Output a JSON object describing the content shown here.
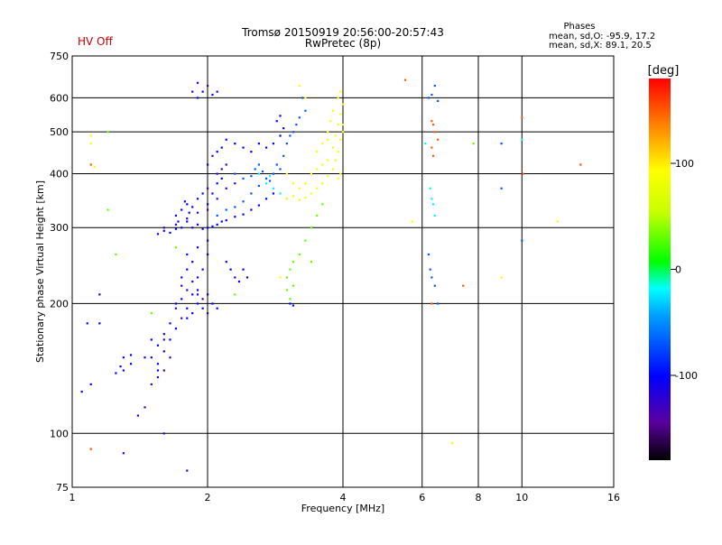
{
  "chart_data": {
    "type": "scatter",
    "title": "Tromsø 20150919 20:56:00-20:57:43",
    "subtitle": "RwPretec (8p)",
    "status_label": "HV Off",
    "status_color": "#cc0000",
    "info": {
      "heading": "Phases",
      "line1": "mean, sd,O: -95.9, 17.2",
      "line2": "mean, sd,X:  89.1, 20.5"
    },
    "xlabel": "Frequency [MHz]",
    "ylabel": "Stationary phase Virtual Height [km]",
    "x_scale": "log",
    "y_scale": "log",
    "xlim": [
      1,
      16
    ],
    "ylim": [
      75,
      750
    ],
    "x_ticks": [
      1,
      2,
      4,
      6,
      8,
      10,
      16
    ],
    "x_tick_labels": [
      "1",
      "2",
      "4",
      "6",
      "8",
      "10",
      "16"
    ],
    "y_ticks": [
      75,
      100,
      200,
      300,
      400,
      500,
      600,
      750
    ],
    "y_tick_labels": [
      "75",
      "100",
      "200",
      "300",
      "400",
      "500",
      "600",
      "750"
    ],
    "grid": true,
    "colorbar": {
      "label": "[deg]",
      "range": [
        -180,
        180
      ],
      "ticks": [
        100,
        0,
        -100
      ],
      "tick_labels": [
        "100",
        "0",
        "-100"
      ]
    },
    "series": [
      {
        "phase_deg": -100,
        "points": [
          [
            1.55,
            290
          ],
          [
            1.6,
            295
          ],
          [
            1.65,
            292
          ],
          [
            1.7,
            298
          ],
          [
            1.75,
            300
          ],
          [
            1.8,
            310
          ],
          [
            1.85,
            300
          ],
          [
            1.9,
            305
          ],
          [
            1.95,
            298
          ],
          [
            2.0,
            300
          ],
          [
            2.05,
            302
          ],
          [
            2.1,
            305
          ],
          [
            2.15,
            310
          ],
          [
            2.2,
            312
          ],
          [
            2.3,
            318
          ],
          [
            2.4,
            322
          ],
          [
            2.5,
            330
          ],
          [
            2.6,
            338
          ],
          [
            2.7,
            350
          ],
          [
            2.8,
            360
          ],
          [
            1.7,
            320
          ],
          [
            1.75,
            330
          ],
          [
            1.8,
            340
          ],
          [
            1.85,
            335
          ],
          [
            1.72,
            310
          ],
          [
            1.78,
            345
          ],
          [
            1.82,
            325
          ],
          [
            1.9,
            350
          ],
          [
            1.95,
            360
          ],
          [
            2.0,
            340
          ],
          [
            2.05,
            360
          ],
          [
            2.1,
            380
          ],
          [
            2.15,
            390
          ],
          [
            2.0,
            420
          ],
          [
            2.1,
            450
          ],
          [
            2.15,
            460
          ],
          [
            2.2,
            480
          ],
          [
            2.3,
            470
          ],
          [
            2.4,
            460
          ],
          [
            2.5,
            450
          ],
          [
            2.6,
            470
          ],
          [
            2.7,
            460
          ],
          [
            2.8,
            470
          ],
          [
            2.9,
            490
          ],
          [
            2.95,
            510
          ],
          [
            2.85,
            530
          ],
          [
            2.9,
            545
          ],
          [
            1.9,
            600
          ],
          [
            1.95,
            620
          ],
          [
            2.05,
            610
          ],
          [
            1.7,
            200
          ],
          [
            1.75,
            205
          ],
          [
            1.8,
            195
          ],
          [
            1.85,
            190
          ],
          [
            1.9,
            200
          ],
          [
            1.95,
            195
          ],
          [
            2.0,
            210
          ],
          [
            2.05,
            200
          ],
          [
            2.1,
            195
          ],
          [
            1.8,
            185
          ],
          [
            1.85,
            210
          ],
          [
            1.9,
            215
          ],
          [
            1.75,
            230
          ],
          [
            1.8,
            240
          ],
          [
            1.85,
            250
          ],
          [
            1.9,
            230
          ],
          [
            1.95,
            240
          ],
          [
            2.0,
            260
          ],
          [
            2.2,
            250
          ],
          [
            2.25,
            240
          ],
          [
            2.3,
            230
          ],
          [
            2.35,
            225
          ],
          [
            2.4,
            240
          ],
          [
            2.45,
            230
          ],
          [
            1.8,
            260
          ],
          [
            1.9,
            270
          ],
          [
            2.0,
            280
          ],
          [
            1.65,
            180
          ],
          [
            1.6,
            170
          ],
          [
            1.55,
            160
          ],
          [
            1.5,
            150
          ],
          [
            1.55,
            145
          ],
          [
            1.6,
            155
          ],
          [
            1.65,
            165
          ],
          [
            1.7,
            175
          ],
          [
            1.5,
            165
          ],
          [
            1.45,
            150
          ],
          [
            1.55,
            140
          ],
          [
            1.3,
            150
          ],
          [
            1.35,
            145
          ],
          [
            1.3,
            140
          ],
          [
            1.25,
            138
          ],
          [
            1.35,
            152
          ],
          [
            1.28,
            143
          ],
          [
            1.15,
            180
          ],
          [
            1.08,
            180
          ],
          [
            1.05,
            125
          ],
          [
            1.1,
            130
          ],
          [
            3.05,
            200
          ],
          [
            3.1,
            198
          ]
        ]
      },
      {
        "phase_deg": -125,
        "points": [
          [
            1.6,
            300
          ],
          [
            1.7,
            305
          ],
          [
            1.8,
            315
          ],
          [
            1.9,
            325
          ],
          [
            2.0,
            330
          ],
          [
            2.1,
            350
          ],
          [
            2.2,
            370
          ],
          [
            2.3,
            380
          ],
          [
            2.0,
            370
          ],
          [
            2.1,
            400
          ],
          [
            2.15,
            410
          ],
          [
            2.2,
            420
          ],
          [
            2.05,
            440
          ],
          [
            1.75,
            220
          ],
          [
            1.8,
            215
          ],
          [
            1.85,
            225
          ],
          [
            1.9,
            210
          ],
          [
            1.95,
            205
          ],
          [
            2.0,
            190
          ],
          [
            1.7,
            195
          ],
          [
            1.75,
            185
          ],
          [
            1.6,
            165
          ],
          [
            1.55,
            135
          ],
          [
            1.5,
            130
          ],
          [
            1.6,
            140
          ],
          [
            1.65,
            150
          ],
          [
            1.9,
            650
          ],
          [
            2.0,
            640
          ],
          [
            1.85,
            620
          ],
          [
            2.1,
            620
          ],
          [
            1.4,
            110
          ],
          [
            1.45,
            115
          ],
          [
            1.6,
            100
          ],
          [
            1.8,
            82
          ],
          [
            1.3,
            90
          ],
          [
            1.15,
            210
          ]
        ]
      },
      {
        "phase_deg": -70,
        "points": [
          [
            2.1,
            320
          ],
          [
            2.2,
            330
          ],
          [
            2.3,
            335
          ],
          [
            2.4,
            345
          ],
          [
            2.5,
            360
          ],
          [
            2.6,
            375
          ],
          [
            2.7,
            390
          ],
          [
            2.8,
            400
          ],
          [
            2.9,
            410
          ],
          [
            2.65,
            405
          ],
          [
            2.75,
            385
          ],
          [
            2.85,
            420
          ],
          [
            2.95,
            440
          ],
          [
            3.0,
            470
          ],
          [
            3.05,
            490
          ],
          [
            3.1,
            500
          ],
          [
            3.15,
            520
          ],
          [
            3.2,
            540
          ],
          [
            3.3,
            560
          ],
          [
            3.25,
            600
          ],
          [
            2.3,
            400
          ],
          [
            2.4,
            390
          ],
          [
            2.5,
            395
          ],
          [
            2.6,
            420
          ],
          [
            2.55,
            410
          ],
          [
            6.2,
            260
          ],
          [
            6.25,
            240
          ],
          [
            6.3,
            230
          ],
          [
            6.4,
            220
          ],
          [
            6.5,
            200
          ],
          [
            6.2,
            600
          ],
          [
            6.3,
            610
          ],
          [
            6.5,
            590
          ],
          [
            9.0,
            370
          ],
          [
            9.0,
            470
          ],
          [
            10.0,
            280
          ],
          [
            6.4,
            640
          ]
        ]
      },
      {
        "phase_deg": -20,
        "points": [
          [
            2.6,
            400
          ],
          [
            2.7,
            380
          ],
          [
            2.8,
            370
          ],
          [
            2.9,
            360
          ],
          [
            3.0,
            350
          ],
          [
            2.75,
            395
          ],
          [
            6.3,
            350
          ],
          [
            6.35,
            340
          ],
          [
            6.25,
            370
          ],
          [
            6.4,
            320
          ],
          [
            10.0,
            480
          ],
          [
            6.1,
            470
          ]
        ]
      },
      {
        "phase_deg": 30,
        "points": [
          [
            3.0,
            230
          ],
          [
            3.05,
            240
          ],
          [
            3.1,
            250
          ],
          [
            3.0,
            215
          ],
          [
            3.05,
            205
          ],
          [
            3.1,
            220
          ],
          [
            3.2,
            260
          ],
          [
            3.3,
            280
          ],
          [
            3.4,
            300
          ],
          [
            3.5,
            320
          ],
          [
            3.4,
            250
          ],
          [
            3.6,
            340
          ],
          [
            7.8,
            470
          ],
          [
            1.7,
            270
          ],
          [
            2.3,
            210
          ],
          [
            1.5,
            190
          ],
          [
            1.2,
            330
          ],
          [
            1.25,
            260
          ],
          [
            1.2,
            500
          ]
        ]
      },
      {
        "phase_deg": 90,
        "points": [
          [
            3.0,
            350
          ],
          [
            3.1,
            355
          ],
          [
            3.2,
            348
          ],
          [
            3.3,
            352
          ],
          [
            3.4,
            360
          ],
          [
            3.5,
            370
          ],
          [
            3.6,
            380
          ],
          [
            3.7,
            395
          ],
          [
            3.8,
            410
          ],
          [
            3.85,
            430
          ],
          [
            3.9,
            450
          ],
          [
            3.95,
            480
          ],
          [
            4.0,
            500
          ],
          [
            3.9,
            520
          ],
          [
            3.95,
            550
          ],
          [
            4.0,
            580
          ],
          [
            3.9,
            600
          ],
          [
            3.95,
            620
          ],
          [
            3.3,
            380
          ],
          [
            3.4,
            400
          ],
          [
            3.5,
            410
          ],
          [
            3.6,
            420
          ],
          [
            3.7,
            430
          ],
          [
            3.8,
            460
          ],
          [
            3.85,
            490
          ],
          [
            3.7,
            500
          ],
          [
            3.75,
            530
          ],
          [
            3.8,
            560
          ],
          [
            3.2,
            370
          ],
          [
            3.1,
            380
          ],
          [
            3.0,
            400
          ],
          [
            3.5,
            450
          ],
          [
            3.6,
            470
          ],
          [
            3.7,
            480
          ],
          [
            4.0,
            520
          ],
          [
            3.95,
            400
          ],
          [
            3.9,
            390
          ],
          [
            1.1,
            490
          ],
          [
            1.1,
            470
          ],
          [
            1.12,
            415
          ],
          [
            7.0,
            95
          ],
          [
            3.3,
            600
          ],
          [
            3.2,
            640
          ],
          [
            5.7,
            310
          ],
          [
            12.0,
            310
          ],
          [
            9.0,
            230
          ],
          [
            2.9,
            230
          ]
        ]
      },
      {
        "phase_deg": 150,
        "points": [
          [
            6.3,
            530
          ],
          [
            6.35,
            520
          ],
          [
            6.4,
            500
          ],
          [
            6.3,
            460
          ],
          [
            6.35,
            440
          ],
          [
            6.5,
            480
          ],
          [
            10.0,
            540
          ],
          [
            10.05,
            400
          ],
          [
            13.5,
            420
          ],
          [
            5.5,
            660
          ],
          [
            7.4,
            220
          ],
          [
            6.3,
            200
          ],
          [
            1.1,
            420
          ],
          [
            1.1,
            92
          ]
        ]
      }
    ]
  }
}
